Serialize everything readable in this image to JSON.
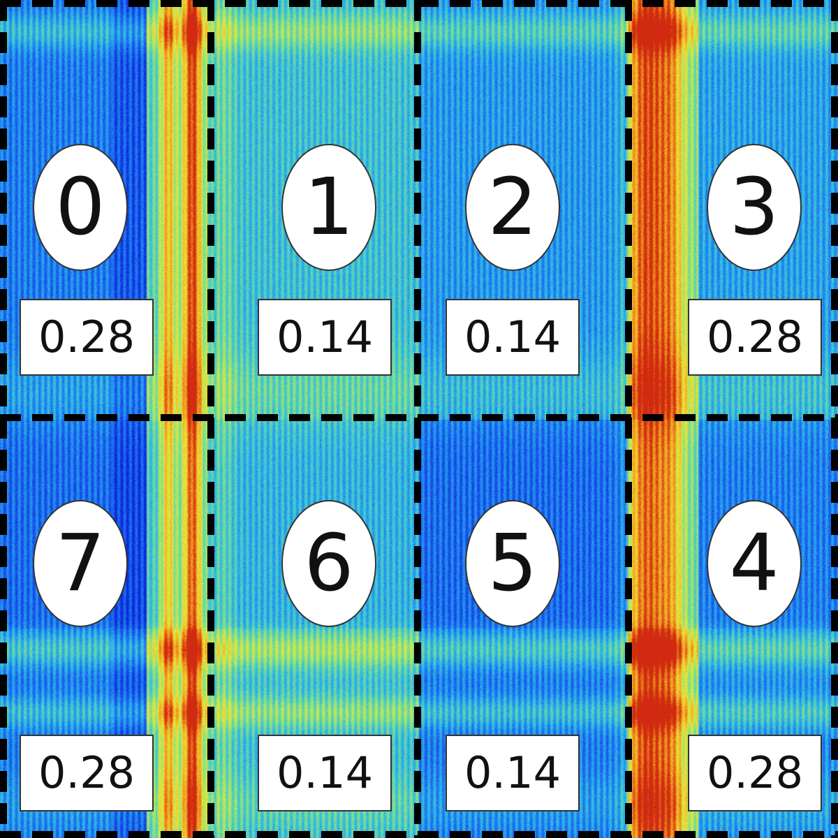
{
  "colormap": [
    "#0a1fd8",
    "#1c6df0",
    "#2ebbe8",
    "#7fe08a",
    "#e8e83a",
    "#f29a20",
    "#d02a10"
  ],
  "grid_line_color": "#000000",
  "regions": [
    {
      "id": "0",
      "value": "0.28"
    },
    {
      "id": "1",
      "value": "0.14"
    },
    {
      "id": "2",
      "value": "0.14"
    },
    {
      "id": "3",
      "value": "0.28"
    },
    {
      "id": "7",
      "value": "0.28"
    },
    {
      "id": "6",
      "value": "0.14"
    },
    {
      "id": "5",
      "value": "0.14"
    },
    {
      "id": "4",
      "value": "0.28"
    }
  ]
}
